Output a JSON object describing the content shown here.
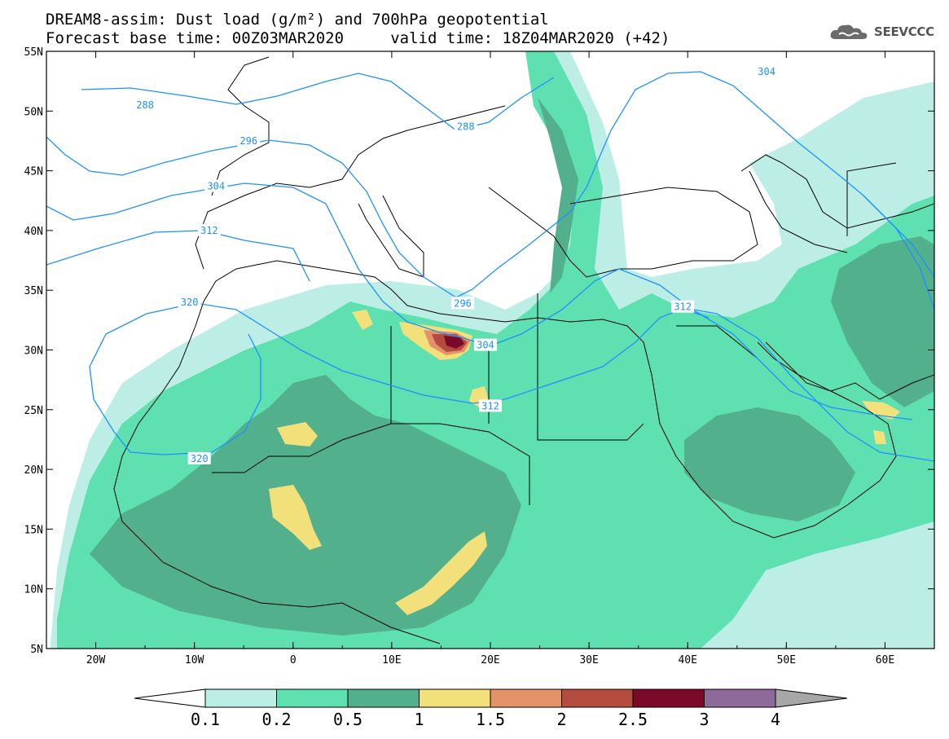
{
  "title": {
    "line1": "DREAM8-assim: Dust load (g/m²) and 700hPa geopotential",
    "line2": "Forecast base time: 00Z03MAR2020     valid time: 18Z04MAR2020 (+42)"
  },
  "logo": {
    "text": "SEEVCCC",
    "icon": "cloud-icon"
  },
  "map": {
    "lat_labels": [
      "55N",
      "50N",
      "45N",
      "40N",
      "35N",
      "30N",
      "25N",
      "20N",
      "15N",
      "10N",
      "5N"
    ],
    "lon_labels": [
      "20W",
      "10W",
      "0",
      "10E",
      "20E",
      "30E",
      "40E",
      "50E",
      "60E"
    ],
    "lat_range": [
      5,
      55
    ],
    "lon_range": [
      -25,
      65
    ]
  },
  "contours": {
    "color": "#1e90ff",
    "labels": [
      {
        "text": "288",
        "lon": -15,
        "lat": 50.5
      },
      {
        "text": "288",
        "lon": 17.5,
        "lat": 48.7
      },
      {
        "text": "304",
        "lon": 48,
        "lat": 53.3
      },
      {
        "text": "296",
        "lon": -4.5,
        "lat": 47.5
      },
      {
        "text": "304",
        "lon": -7.8,
        "lat": 43.7
      },
      {
        "text": "312",
        "lon": -8.5,
        "lat": 40.0
      },
      {
        "text": "296",
        "lon": 17.2,
        "lat": 33.9
      },
      {
        "text": "312",
        "lon": 39.5,
        "lat": 33.6
      },
      {
        "text": "320",
        "lon": -10.5,
        "lat": 34.0
      },
      {
        "text": "304",
        "lon": 19.5,
        "lat": 30.4
      },
      {
        "text": "312",
        "lon": 20.0,
        "lat": 25.3
      },
      {
        "text": "320",
        "lon": -9.5,
        "lat": 20.9
      }
    ]
  },
  "colorbar": {
    "labels": [
      "0.1",
      "0.2",
      "0.5",
      "1",
      "1.5",
      "2",
      "2.5",
      "3",
      "4"
    ],
    "colors": [
      "#ffffff",
      "#bdeee6",
      "#5ee0b0",
      "#53b08d",
      "#f2e07a",
      "#e5926a",
      "#b34c3f",
      "#7b0a2a",
      "#8e6a9a",
      "#a7a7a7"
    ]
  }
}
